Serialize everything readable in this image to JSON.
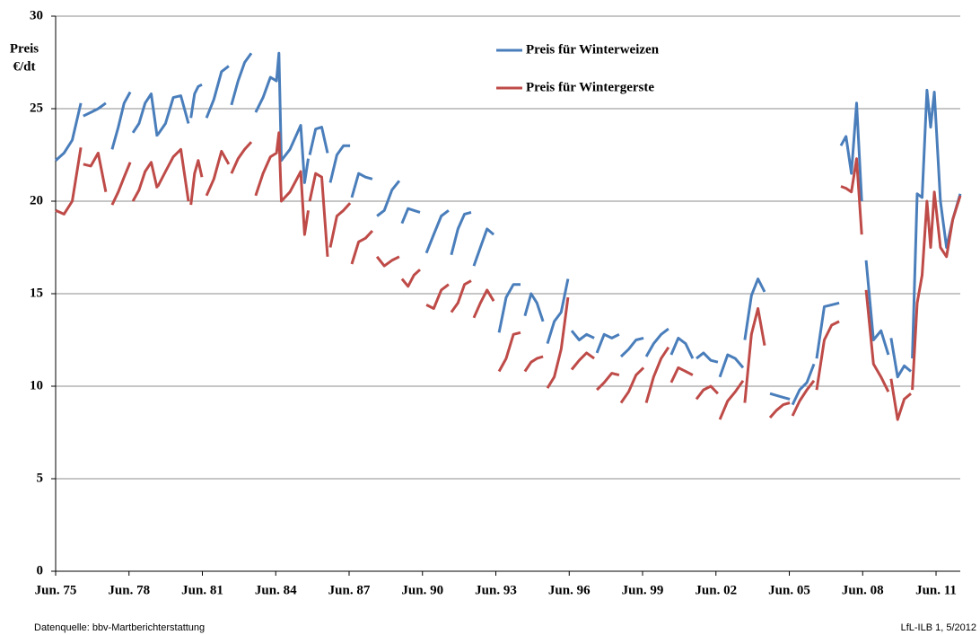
{
  "chart_data": {
    "type": "line",
    "ylabel": [
      "Preis",
      "€/dt"
    ],
    "source": "Datenquelle: bbv-Martberichterstattung",
    "credit": "LfL-ILB 1, 5/2012",
    "xlim": [
      1975.42,
      2012.41
    ],
    "ylim": [
      0,
      30
    ],
    "yticks": [
      0,
      5,
      10,
      15,
      20,
      25,
      30
    ],
    "xticks": [
      {
        "value": 1975.42,
        "label": "Jun. 75"
      },
      {
        "value": 1978.42,
        "label": "Jun. 78"
      },
      {
        "value": 1981.42,
        "label": "Jun. 81"
      },
      {
        "value": 1984.42,
        "label": "Jun. 84"
      },
      {
        "value": 1987.42,
        "label": "Jun. 87"
      },
      {
        "value": 1990.42,
        "label": "Jun. 90"
      },
      {
        "value": 1993.42,
        "label": "Jun. 93"
      },
      {
        "value": 1996.42,
        "label": "Jun. 96"
      },
      {
        "value": 1999.42,
        "label": "Jun. 99"
      },
      {
        "value": 2002.42,
        "label": "Jun. 02"
      },
      {
        "value": 2005.42,
        "label": "Jun. 05"
      },
      {
        "value": 2008.42,
        "label": "Jun. 08"
      },
      {
        "value": 2011.42,
        "label": "Jun. 11"
      }
    ],
    "grid": true,
    "x": [
      1975.42,
      1975.76,
      1976.1,
      1976.45,
      null,
      1976.55,
      1976.86,
      1977.16,
      1977.47,
      null,
      1977.73,
      1977.98,
      1978.22,
      1978.47,
      null,
      1978.58,
      1978.83,
      1979.08,
      1979.33,
      1979.57,
      null,
      1979.6,
      1979.91,
      1980.23,
      1980.54,
      1980.85,
      null,
      1980.95,
      1981.1,
      1981.25,
      1981.4,
      null,
      1981.59,
      1981.89,
      1982.2,
      1982.5,
      null,
      1982.61,
      1982.88,
      1983.15,
      1983.42,
      null,
      1983.6,
      1983.9,
      1984.2,
      1984.45,
      1984.55,
      1984.65,
      1985.0,
      1985.44,
      1985.6,
      1985.75,
      null,
      1985.81,
      1986.05,
      1986.3,
      1986.54,
      null,
      1986.65,
      1986.92,
      1987.19,
      1987.46,
      null,
      1987.53,
      1987.81,
      1988.09,
      1988.37,
      null,
      1988.56,
      1988.86,
      1989.17,
      1989.47,
      null,
      1989.58,
      1989.83,
      1990.07,
      1990.32,
      null,
      1990.58,
      1990.88,
      1991.19,
      1991.49,
      null,
      1991.6,
      1991.87,
      1992.14,
      1992.41,
      null,
      1992.52,
      1992.79,
      1993.06,
      1993.33,
      null,
      1993.55,
      1993.84,
      1994.14,
      1994.43,
      null,
      1994.61,
      1994.86,
      1995.1,
      1995.35,
      null,
      1995.53,
      1995.81,
      1996.09,
      1996.37,
      null,
      1996.52,
      1996.83,
      1997.13,
      1997.44,
      null,
      1997.55,
      1997.85,
      1998.16,
      1998.46,
      null,
      1998.54,
      1998.85,
      1999.15,
      1999.46,
      null,
      1999.57,
      1999.87,
      2000.18,
      2000.48,
      null,
      2000.59,
      2000.88,
      2001.18,
      2001.47,
      null,
      2001.62,
      2001.91,
      2002.21,
      2002.5,
      null,
      2002.58,
      2002.9,
      2003.21,
      2003.53,
      null,
      2003.6,
      2003.87,
      2004.14,
      2004.41,
      null,
      2004.63,
      2004.9,
      2005.17,
      2005.44,
      null,
      2005.55,
      2005.84,
      2006.14,
      2006.43,
      null,
      2006.54,
      2006.85,
      2007.15,
      2007.46,
      null,
      2007.53,
      2007.74,
      2007.96,
      2008.17,
      2008.38,
      null,
      2008.56,
      2008.86,
      2009.17,
      2009.47,
      null,
      2009.58,
      2009.85,
      2010.12,
      2010.39,
      null,
      2010.45,
      2010.65,
      2010.85,
      2011.05,
      2011.2,
      2011.35,
      2011.6,
      2011.85,
      2012.1,
      2012.41
    ],
    "series": [
      {
        "name": "Preis für Winterweizen",
        "color": "#4a7ebb",
        "values": [
          22.2,
          22.6,
          23.3,
          25.3,
          null,
          24.6,
          24.8,
          25.0,
          25.3,
          null,
          22.8,
          24.0,
          25.3,
          25.9,
          null,
          23.7,
          24.2,
          25.3,
          25.8,
          23.5,
          null,
          23.6,
          24.2,
          25.6,
          25.7,
          24.2,
          null,
          24.5,
          25.8,
          26.2,
          26.3,
          null,
          24.5,
          25.5,
          27.0,
          27.3,
          null,
          25.2,
          26.5,
          27.5,
          28.0,
          null,
          24.8,
          25.6,
          26.7,
          26.5,
          28.0,
          22.2,
          22.8,
          24.1,
          21.0,
          22.3,
          null,
          22.5,
          23.9,
          24.0,
          22.6,
          null,
          21.0,
          22.5,
          23.0,
          23.0,
          null,
          20.2,
          21.5,
          21.3,
          21.2,
          null,
          19.2,
          19.5,
          20.6,
          21.1,
          null,
          18.8,
          19.6,
          19.5,
          19.4,
          null,
          17.2,
          18.2,
          19.2,
          19.5,
          null,
          17.1,
          18.5,
          19.3,
          19.4,
          null,
          16.5,
          17.5,
          18.5,
          18.2,
          null,
          12.9,
          14.8,
          15.5,
          15.5,
          null,
          13.8,
          15.0,
          14.5,
          13.5,
          null,
          12.3,
          13.5,
          14.0,
          15.8,
          null,
          13.0,
          12.5,
          12.8,
          12.6,
          null,
          11.8,
          12.8,
          12.6,
          12.8,
          null,
          11.6,
          12.0,
          12.5,
          12.6,
          null,
          11.6,
          12.3,
          12.8,
          13.1,
          null,
          11.7,
          12.6,
          12.3,
          11.5,
          null,
          11.5,
          11.8,
          11.4,
          11.3,
          null,
          10.5,
          11.7,
          11.5,
          11.0,
          null,
          12.5,
          14.9,
          15.8,
          15.1,
          null,
          9.6,
          9.5,
          9.4,
          9.3,
          null,
          9.0,
          9.8,
          10.2,
          11.2,
          null,
          11.5,
          14.3,
          14.4,
          14.5,
          null,
          23.0,
          23.5,
          21.5,
          25.3,
          20.0,
          null,
          16.8,
          12.5,
          13.0,
          11.7,
          null,
          12.6,
          10.5,
          11.1,
          10.8,
          null,
          11.5,
          20.4,
          20.2,
          26.0,
          24.0,
          25.9,
          20.0,
          17.5,
          19.0,
          20.4
        ]
      },
      {
        "name": "Preis für Wintergerste",
        "color": "#be4b48",
        "values": [
          19.5,
          19.3,
          20.0,
          22.9,
          null,
          22.0,
          21.9,
          22.6,
          20.5,
          null,
          19.8,
          20.5,
          21.3,
          22.1,
          null,
          20.0,
          20.6,
          21.6,
          22.1,
          20.7,
          null,
          20.8,
          21.6,
          22.4,
          22.8,
          20.0,
          null,
          19.8,
          21.5,
          22.2,
          21.3,
          null,
          20.3,
          21.2,
          22.7,
          22.0,
          null,
          21.5,
          22.3,
          22.8,
          23.2,
          null,
          20.3,
          21.5,
          22.4,
          22.6,
          23.7,
          20.0,
          20.5,
          21.6,
          18.2,
          19.5,
          null,
          20.0,
          21.5,
          21.3,
          17.0,
          null,
          17.5,
          19.2,
          19.5,
          19.9,
          null,
          16.6,
          17.8,
          18.0,
          18.4,
          null,
          17.0,
          16.5,
          16.8,
          17.0,
          null,
          15.8,
          15.4,
          16.0,
          16.3,
          null,
          14.4,
          14.2,
          15.2,
          15.5,
          null,
          14.0,
          14.5,
          15.5,
          15.7,
          null,
          13.7,
          14.5,
          15.2,
          14.6,
          null,
          10.8,
          11.5,
          12.8,
          12.9,
          null,
          10.8,
          11.3,
          11.5,
          11.6,
          null,
          9.9,
          10.5,
          12.0,
          14.8,
          null,
          10.9,
          11.4,
          11.8,
          11.5,
          null,
          9.8,
          10.2,
          10.7,
          10.6,
          null,
          9.1,
          9.7,
          10.6,
          11.0,
          null,
          9.1,
          10.5,
          11.5,
          12.1,
          null,
          10.2,
          11.0,
          10.8,
          10.6,
          null,
          9.3,
          9.8,
          10.0,
          9.6,
          null,
          8.2,
          9.2,
          9.7,
          10.3,
          null,
          9.1,
          12.8,
          14.2,
          12.2,
          null,
          8.3,
          8.7,
          9.0,
          9.1,
          null,
          8.4,
          9.2,
          9.8,
          10.3,
          null,
          9.8,
          12.5,
          13.3,
          13.5,
          null,
          20.8,
          20.7,
          20.5,
          22.3,
          18.2,
          null,
          15.2,
          11.2,
          10.5,
          9.7,
          null,
          10.4,
          8.2,
          9.3,
          9.6,
          null,
          9.8,
          14.5,
          16.0,
          20.0,
          17.5,
          20.5,
          17.5,
          17.0,
          19.0,
          20.3
        ]
      }
    ]
  }
}
